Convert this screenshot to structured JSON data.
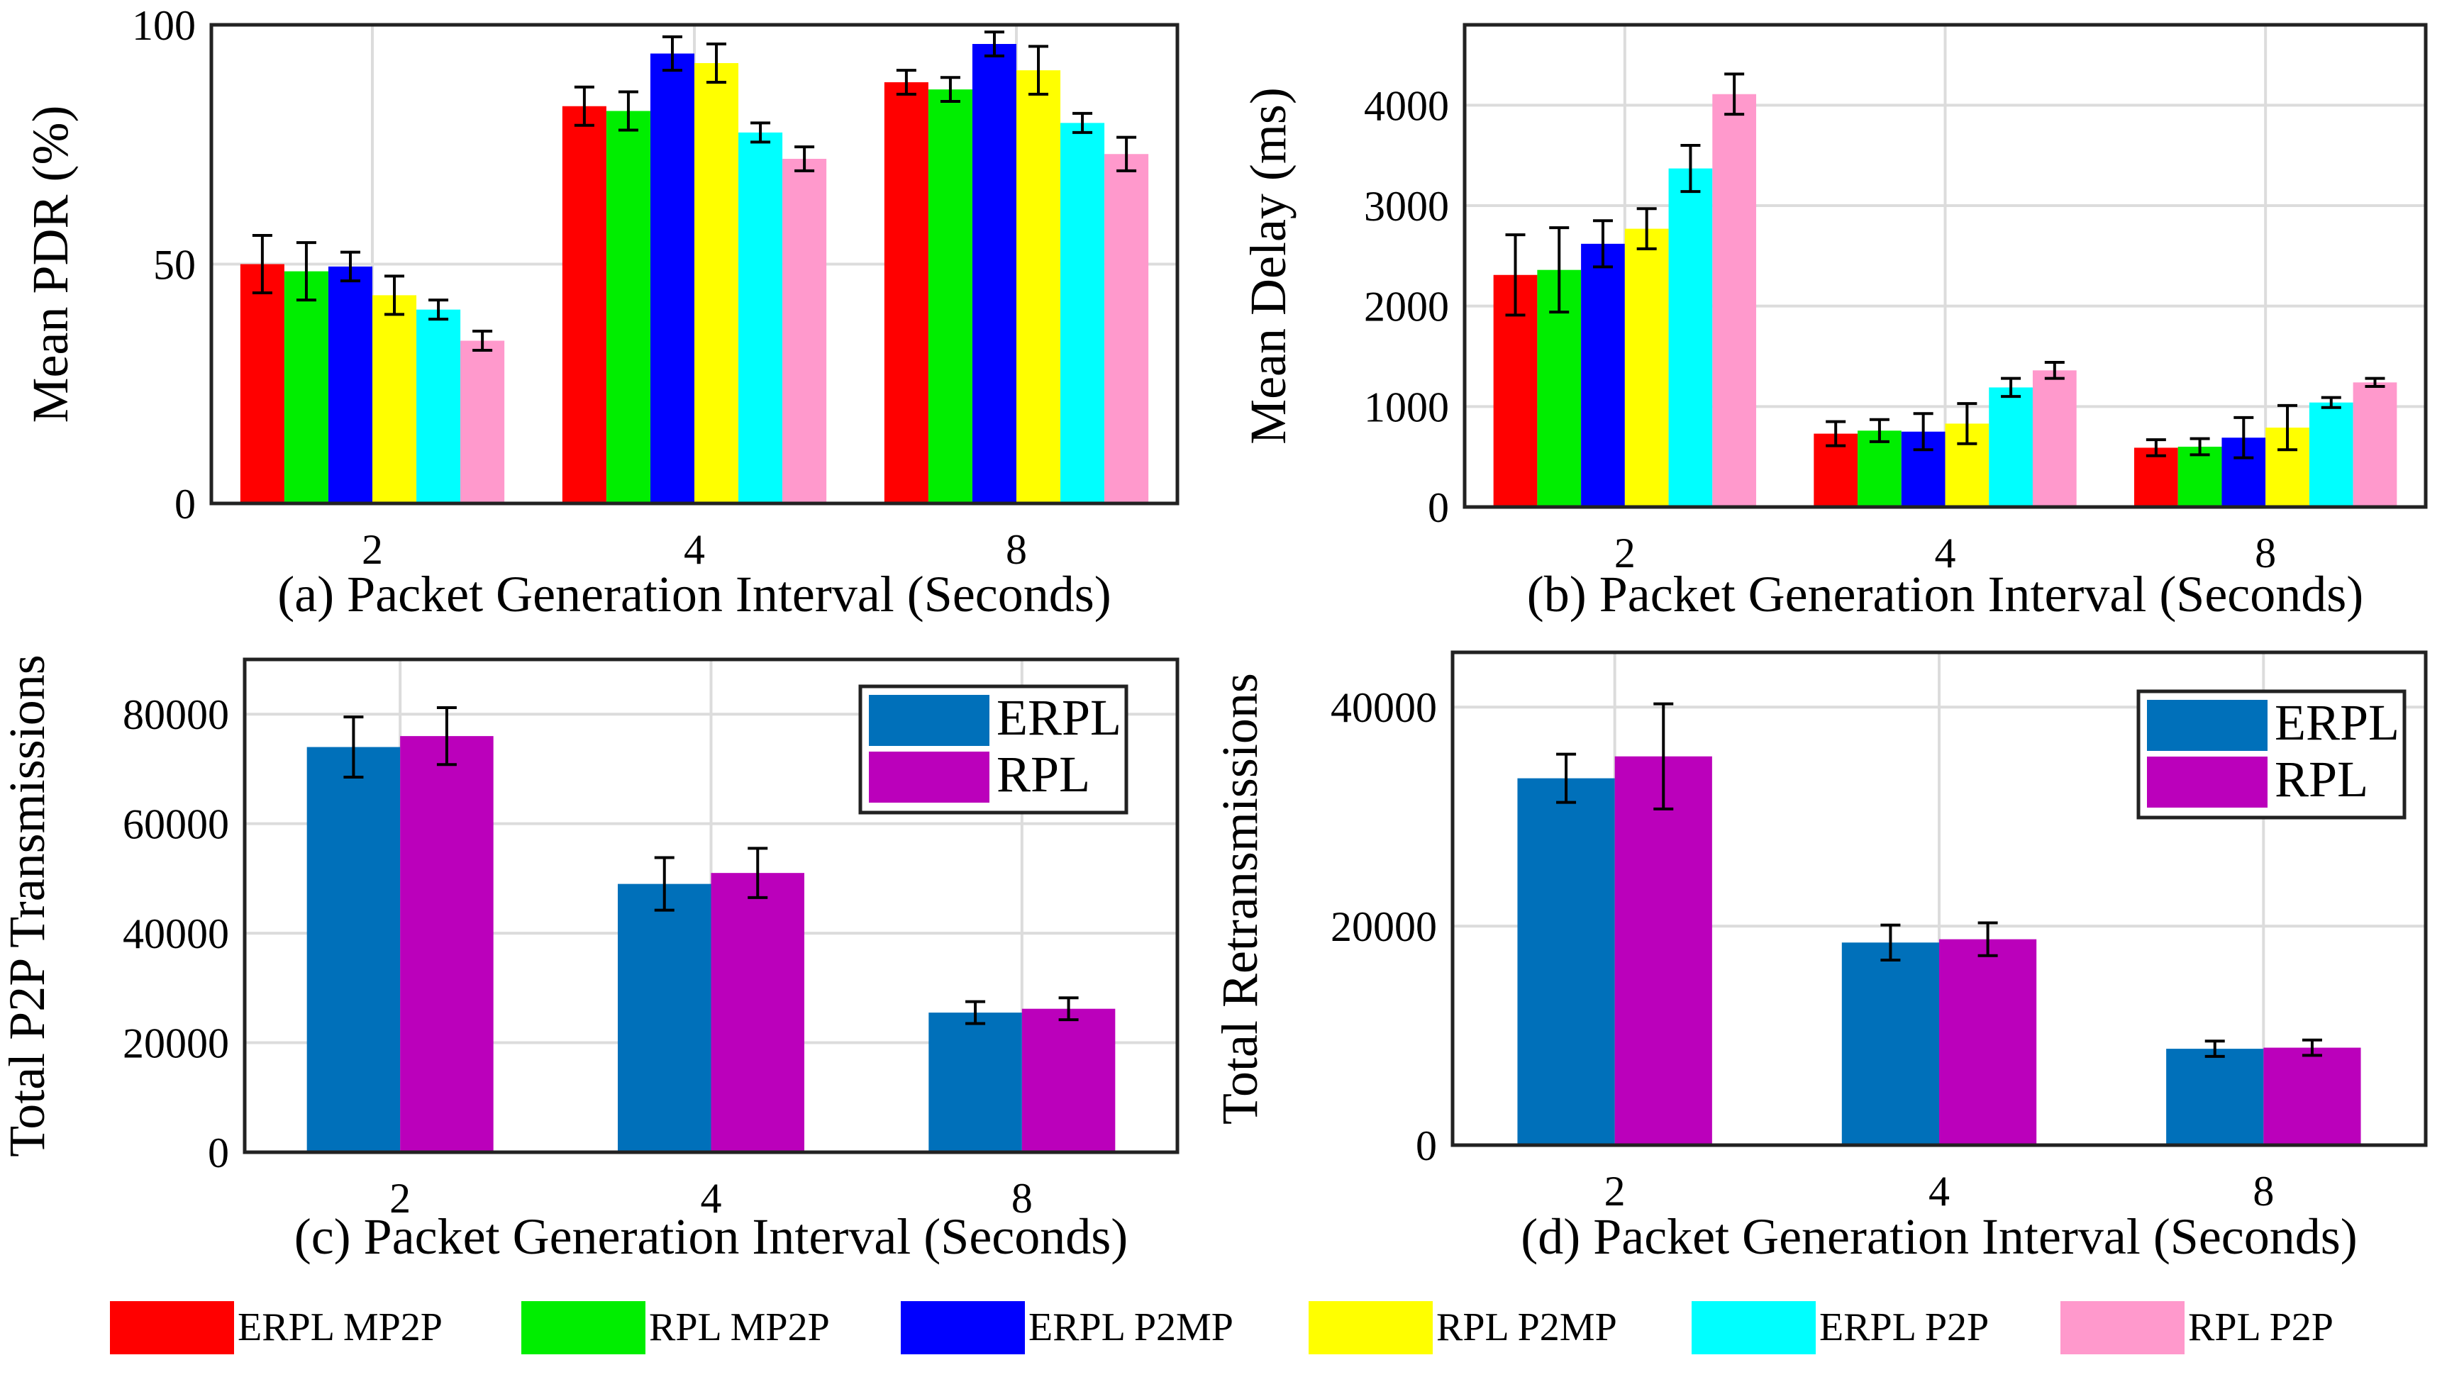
{
  "figure_legend": {
    "items": [
      {
        "label": "ERPL MP2P",
        "color": "#ff0000"
      },
      {
        "label": "RPL MP2P",
        "color": "#00ee00"
      },
      {
        "label": "ERPL P2MP",
        "color": "#0000ff"
      },
      {
        "label": "RPL P2MP",
        "color": "#ffff00"
      },
      {
        "label": "ERPL P2P",
        "color": "#00ffff"
      },
      {
        "label": "RPL P2P",
        "color": "#ff99cc"
      }
    ]
  },
  "chart_data": [
    {
      "id": "a",
      "type": "bar",
      "caption": "(a) Packet Generation Interval (Seconds)",
      "ylabel": "Mean PDR (%)",
      "categories": [
        "2",
        "4",
        "8"
      ],
      "ylim": [
        0,
        100
      ],
      "yticks": [
        "0",
        "50",
        "100"
      ],
      "grid": true,
      "series": [
        {
          "name": "ERPL MP2P",
          "values": [
            50,
            83,
            88
          ],
          "errors": [
            6,
            4,
            2.5
          ]
        },
        {
          "name": "RPL MP2P",
          "values": [
            48.5,
            82,
            86.5
          ],
          "errors": [
            6,
            4,
            2.5
          ]
        },
        {
          "name": "ERPL P2MP",
          "values": [
            49.5,
            94,
            96
          ],
          "errors": [
            3,
            3.5,
            2.5
          ]
        },
        {
          "name": "RPL P2MP",
          "values": [
            43.5,
            92,
            90.5
          ],
          "errors": [
            4,
            4,
            5
          ]
        },
        {
          "name": "ERPL P2P",
          "values": [
            40.5,
            77.5,
            79.5
          ],
          "errors": [
            2,
            2,
            2
          ]
        },
        {
          "name": "RPL P2P",
          "values": [
            34,
            72,
            73
          ],
          "errors": [
            2,
            2.5,
            3.5
          ]
        }
      ]
    },
    {
      "id": "b",
      "type": "bar",
      "caption": "(b) Packet Generation Interval (Seconds)",
      "ylabel": "Mean Delay (ms)",
      "categories": [
        "2",
        "4",
        "8"
      ],
      "ylim": [
        0,
        4800
      ],
      "yticks": [
        "0",
        "1000",
        "2000",
        "3000",
        "4000"
      ],
      "grid": true,
      "series": [
        {
          "name": "ERPL MP2P",
          "values": [
            2310,
            730,
            590
          ],
          "errors": [
            400,
            120,
            80
          ]
        },
        {
          "name": "RPL MP2P",
          "values": [
            2360,
            760,
            600
          ],
          "errors": [
            420,
            110,
            80
          ]
        },
        {
          "name": "ERPL P2MP",
          "values": [
            2620,
            750,
            690
          ],
          "errors": [
            230,
            180,
            200
          ]
        },
        {
          "name": "RPL P2MP",
          "values": [
            2770,
            830,
            790
          ],
          "errors": [
            200,
            200,
            220
          ]
        },
        {
          "name": "ERPL P2P",
          "values": [
            3370,
            1190,
            1040
          ],
          "errors": [
            230,
            90,
            50
          ]
        },
        {
          "name": "RPL P2P",
          "values": [
            4110,
            1360,
            1240
          ],
          "errors": [
            200,
            80,
            40
          ]
        }
      ]
    },
    {
      "id": "c",
      "type": "bar",
      "caption": "(c) Packet Generation Interval (Seconds)",
      "ylabel": "Total P2P Transmissions",
      "categories": [
        "2",
        "4",
        "8"
      ],
      "ylim": [
        0,
        90000
      ],
      "yticks": [
        "0",
        "20000",
        "40000",
        "60000",
        "80000"
      ],
      "grid": true,
      "legend_position": "top-right",
      "series": [
        {
          "name": "ERPL",
          "values": [
            74000,
            49000,
            25500
          ],
          "errors": [
            5500,
            4800,
            2000
          ]
        },
        {
          "name": "RPL",
          "values": [
            76000,
            51000,
            26200
          ],
          "errors": [
            5200,
            4500,
            2000
          ]
        }
      ]
    },
    {
      "id": "d",
      "type": "bar",
      "caption": "(d) Packet Generation Interval (Seconds)",
      "ylabel": "Total Retransmissions",
      "categories": [
        "2",
        "4",
        "8"
      ],
      "ylim": [
        0,
        45000
      ],
      "yticks": [
        "0",
        "20000",
        "40000"
      ],
      "grid": true,
      "legend_position": "top-right",
      "series": [
        {
          "name": "ERPL",
          "values": [
            33500,
            18500,
            8800
          ],
          "errors": [
            2200,
            1600,
            700
          ]
        },
        {
          "name": "RPL",
          "values": [
            35500,
            18800,
            8900
          ],
          "errors": [
            4800,
            1500,
            700
          ]
        }
      ]
    }
  ]
}
